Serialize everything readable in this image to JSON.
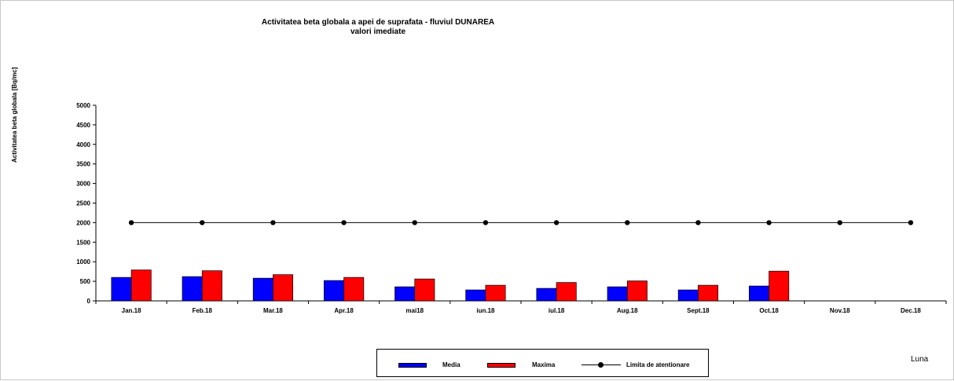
{
  "chart_data": {
    "type": "bar",
    "title": "Activitatea  beta globala a apei de suprafata - fluviul DUNAREA",
    "subtitle": "valori imediate",
    "ylabel": "Activitatea beta globala [Bq/mc]",
    "xlabel": "Luna",
    "ylim": [
      0,
      5000
    ],
    "yticks": [
      0,
      500,
      1000,
      1500,
      2000,
      2500,
      3000,
      3500,
      4000,
      4500,
      5000
    ],
    "categories": [
      "Jan.18",
      "Feb.18",
      "Mar.18",
      "Apr.18",
      "mai18",
      "iun.18",
      "iul.18",
      "Aug.18",
      "Sept.18",
      "Oct.18",
      "Nov.18",
      "Dec.18"
    ],
    "series": [
      {
        "name": "Media",
        "type": "bar",
        "color": "#0000ff",
        "values": [
          600,
          620,
          580,
          520,
          360,
          280,
          320,
          360,
          280,
          380,
          null,
          null
        ]
      },
      {
        "name": "Maxima",
        "type": "bar",
        "color": "#ff0000",
        "values": [
          790,
          770,
          670,
          600,
          560,
          400,
          470,
          510,
          400,
          760,
          null,
          null
        ]
      },
      {
        "name": "Limita de atentionare",
        "type": "line",
        "color": "#000000",
        "values": [
          2000,
          2000,
          2000,
          2000,
          2000,
          2000,
          2000,
          2000,
          2000,
          2000,
          2000,
          2000
        ]
      }
    ],
    "grid": false,
    "legend_position": "bottom"
  }
}
